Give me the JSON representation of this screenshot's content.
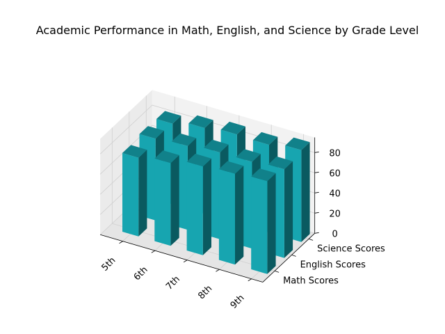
{
  "chart_data": {
    "type": "bar",
    "subtype": "3d-bar",
    "title": "Academic Performance in Math, English, and Science by Grade Level",
    "categories": [
      "5th",
      "6th",
      "7th",
      "8th",
      "9th"
    ],
    "series": [
      {
        "name": "Math Scores",
        "values": [
          78,
          82,
          88,
          90,
          92
        ]
      },
      {
        "name": "English Scores",
        "values": [
          81,
          83,
          86,
          86,
          88
        ]
      },
      {
        "name": "Science Scores",
        "values": [
          80,
          85,
          88,
          87,
          91
        ]
      }
    ],
    "zticks": [
      0,
      20,
      40,
      60,
      80
    ],
    "zlim": [
      0,
      95
    ],
    "grid": true,
    "colors": {
      "front": "#17A5B0",
      "side": "#0A5A60",
      "top": "#11818A",
      "pane_back": "#F2F2F2",
      "pane_side": "#EBEBEB",
      "pane_floor": "#E5E5E5",
      "grid": "#D0D0D0",
      "axis": "#000000"
    }
  }
}
